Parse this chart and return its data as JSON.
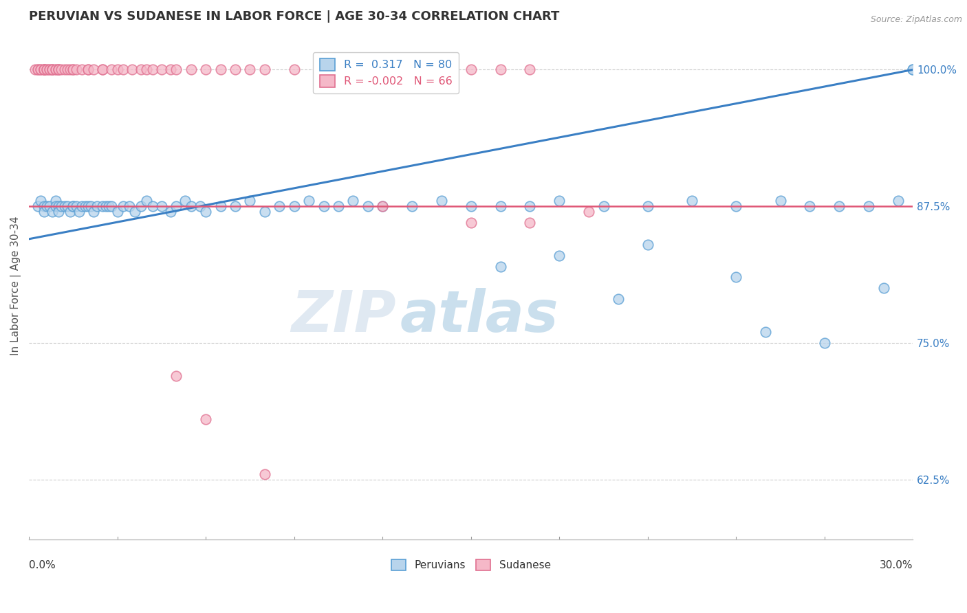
{
  "title": "PERUVIAN VS SUDANESE IN LABOR FORCE | AGE 30-34 CORRELATION CHART",
  "source": "Source: ZipAtlas.com",
  "ylabel": "In Labor Force | Age 30-34",
  "ylabel_right_ticks": [
    62.5,
    75.0,
    87.5,
    100.0
  ],
  "ylabel_right_labels": [
    "62.5%",
    "75.0%",
    "87.5%",
    "100.0%"
  ],
  "xmin": 0.0,
  "xmax": 0.3,
  "ymin": 0.57,
  "ymax": 1.035,
  "r_peruvian": 0.317,
  "n_peruvian": 80,
  "r_sudanese": -0.002,
  "n_sudanese": 66,
  "legend_label_peruvian": "Peruvians",
  "legend_label_sudanese": "Sudanese",
  "color_peruvian_fill": "#b8d4ec",
  "color_peruvian_edge": "#5a9fd4",
  "color_sudanese_fill": "#f5b8c8",
  "color_sudanese_edge": "#e07090",
  "color_peruvian_line": "#3a7fc4",
  "color_sudanese_line": "#e05878",
  "watermark_zip": "ZIP",
  "watermark_atlas": "atlas",
  "peruvian_x": [
    0.003,
    0.004,
    0.005,
    0.005,
    0.006,
    0.007,
    0.008,
    0.009,
    0.009,
    0.01,
    0.01,
    0.011,
    0.012,
    0.013,
    0.014,
    0.015,
    0.015,
    0.016,
    0.017,
    0.018,
    0.019,
    0.02,
    0.021,
    0.022,
    0.023,
    0.025,
    0.026,
    0.027,
    0.028,
    0.03,
    0.032,
    0.034,
    0.036,
    0.038,
    0.04,
    0.042,
    0.045,
    0.048,
    0.05,
    0.053,
    0.055,
    0.058,
    0.06,
    0.065,
    0.07,
    0.075,
    0.08,
    0.085,
    0.09,
    0.095,
    0.1,
    0.105,
    0.11,
    0.115,
    0.12,
    0.13,
    0.14,
    0.15,
    0.16,
    0.17,
    0.18,
    0.195,
    0.21,
    0.225,
    0.24,
    0.255,
    0.265,
    0.275,
    0.285,
    0.295,
    0.3,
    0.16,
    0.2,
    0.25,
    0.27,
    0.21,
    0.18,
    0.24,
    0.29,
    0.3
  ],
  "peruvian_y": [
    0.875,
    0.88,
    0.875,
    0.87,
    0.875,
    0.875,
    0.87,
    0.88,
    0.875,
    0.875,
    0.87,
    0.875,
    0.875,
    0.875,
    0.87,
    0.875,
    0.875,
    0.875,
    0.87,
    0.875,
    0.875,
    0.875,
    0.875,
    0.87,
    0.875,
    0.875,
    0.875,
    0.875,
    0.875,
    0.87,
    0.875,
    0.875,
    0.87,
    0.875,
    0.88,
    0.875,
    0.875,
    0.87,
    0.875,
    0.88,
    0.875,
    0.875,
    0.87,
    0.875,
    0.875,
    0.88,
    0.87,
    0.875,
    0.875,
    0.88,
    0.875,
    0.875,
    0.88,
    0.875,
    0.875,
    0.875,
    0.88,
    0.875,
    0.875,
    0.875,
    0.88,
    0.875,
    0.875,
    0.88,
    0.875,
    0.88,
    0.875,
    0.875,
    0.875,
    0.88,
    1.0,
    0.82,
    0.79,
    0.76,
    0.75,
    0.84,
    0.83,
    0.81,
    0.8,
    1.0
  ],
  "sudanese_x": [
    0.002,
    0.003,
    0.003,
    0.004,
    0.004,
    0.005,
    0.005,
    0.005,
    0.005,
    0.006,
    0.006,
    0.007,
    0.007,
    0.008,
    0.008,
    0.008,
    0.009,
    0.009,
    0.01,
    0.01,
    0.01,
    0.011,
    0.012,
    0.013,
    0.014,
    0.015,
    0.015,
    0.016,
    0.018,
    0.02,
    0.02,
    0.022,
    0.025,
    0.025,
    0.028,
    0.03,
    0.032,
    0.035,
    0.038,
    0.04,
    0.042,
    0.045,
    0.048,
    0.05,
    0.055,
    0.06,
    0.065,
    0.07,
    0.075,
    0.08,
    0.09,
    0.1,
    0.11,
    0.12,
    0.13,
    0.14,
    0.15,
    0.16,
    0.17,
    0.12,
    0.17,
    0.19,
    0.15,
    0.05,
    0.06,
    0.08
  ],
  "sudanese_y": [
    1.0,
    1.0,
    1.0,
    1.0,
    1.0,
    1.0,
    1.0,
    1.0,
    1.0,
    1.0,
    1.0,
    1.0,
    1.0,
    1.0,
    1.0,
    1.0,
    1.0,
    1.0,
    1.0,
    1.0,
    1.0,
    1.0,
    1.0,
    1.0,
    1.0,
    1.0,
    1.0,
    1.0,
    1.0,
    1.0,
    1.0,
    1.0,
    1.0,
    1.0,
    1.0,
    1.0,
    1.0,
    1.0,
    1.0,
    1.0,
    1.0,
    1.0,
    1.0,
    1.0,
    1.0,
    1.0,
    1.0,
    1.0,
    1.0,
    1.0,
    1.0,
    1.0,
    1.0,
    1.0,
    1.0,
    1.0,
    1.0,
    1.0,
    1.0,
    0.875,
    0.86,
    0.87,
    0.86,
    0.72,
    0.68,
    0.63
  ],
  "trend_peruvian_x0": 0.0,
  "trend_peruvian_y0": 0.845,
  "trend_peruvian_x1": 0.3,
  "trend_peruvian_y1": 1.0,
  "trend_sudanese_y": 0.875
}
